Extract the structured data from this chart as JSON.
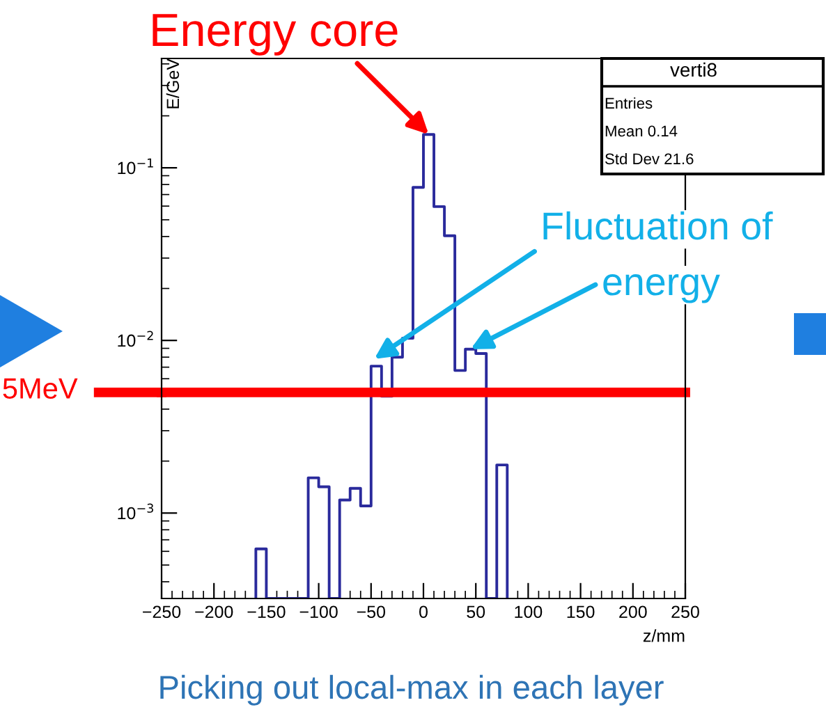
{
  "chart_data": {
    "type": "histogram",
    "ylabel": "E/GeV",
    "xlabel": "z/mm",
    "log": "y",
    "grid": false,
    "legend": false,
    "bins": [
      -160,
      -150,
      -140,
      -130,
      -120,
      -110,
      -100,
      -90,
      -80,
      -70,
      -60,
      -50,
      -40,
      -30,
      -20,
      -10,
      0,
      10,
      20,
      30,
      40,
      50,
      60,
      70,
      80
    ],
    "values": [
      0.00062,
      null,
      null,
      null,
      null,
      0.0016,
      0.00142,
      null,
      0.00119,
      0.00139,
      0.0011,
      0.0071,
      0.00475,
      0.008,
      0.0103,
      0.077,
      0.156,
      0.0596,
      0.0404,
      0.0067,
      0.0089,
      0.0084,
      null,
      0.0019
    ],
    "color": "#2a2a9c",
    "xlim": [
      -250,
      250
    ],
    "xticks": [
      -250,
      -200,
      -150,
      -100,
      -50,
      0,
      50,
      100,
      150,
      200,
      250
    ],
    "ylim": [
      0.00032,
      0.43
    ],
    "yticks": [
      {
        "value": 0.001,
        "label": "10$^{−3}$"
      },
      {
        "value": 0.01,
        "label": "10$^{−2}$"
      },
      {
        "value": 0.1,
        "label": "10$^{−1}$"
      }
    ],
    "ref_lines": [
      {
        "axis": "y",
        "value": 0.005,
        "label": "5MeV",
        "color": "#ff0000"
      }
    ],
    "annotations": [
      {
        "text": "Energy core",
        "x": 5,
        "y": 0.156
      },
      {
        "text": "Fluctuation of",
        "x": -47,
        "y": 0.0078
      },
      {
        "text": "energy",
        "x": 45,
        "y": 0.0089
      },
      "verti8",
      "Entries",
      "Mean 0.14",
      "Std Dev 21.6",
      "Picking out local-max in each layer"
    ]
  }
}
